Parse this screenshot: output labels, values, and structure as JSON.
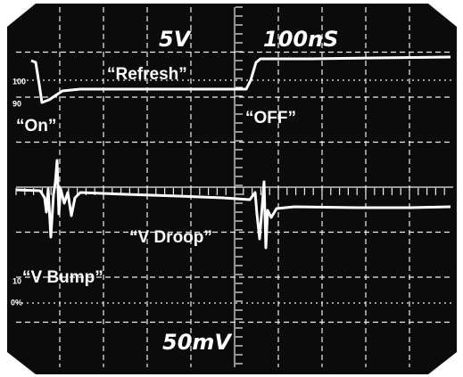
{
  "scale_labels": {
    "vertical_top": "5V",
    "horizontal": "100nS",
    "vertical_bottom": "50mV"
  },
  "annotations": {
    "refresh": "“Refresh”",
    "on": "“On”",
    "off": "“OFF”",
    "droop": "“V Droop”",
    "bump": "“V Bump”"
  },
  "margin_labels": {
    "top_100": "100",
    "top_90": "90",
    "bottom_10": "10",
    "bottom_0": "0%"
  }
}
